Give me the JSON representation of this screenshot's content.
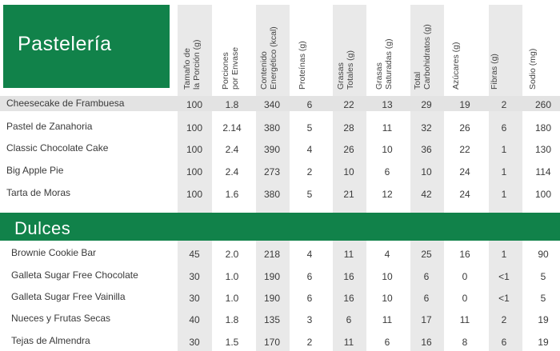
{
  "headers": [
    [
      "Tamaño de",
      "la Porción (g)"
    ],
    [
      "Porciones",
      "por Envase"
    ],
    [
      "Contenido",
      "Energético (kcal)"
    ],
    [
      "Proteínas (g)"
    ],
    [
      "Grasas",
      "Totales (g)"
    ],
    [
      "Grasas",
      "Saturadas (g)"
    ],
    [
      "Total",
      "Carbohidratos (g)"
    ],
    [
      "Azúcares (g)"
    ],
    [
      "Fibras (g)"
    ],
    [
      "Sodio (mg)"
    ]
  ],
  "sections": [
    {
      "title": "Pastelería",
      "rows": [
        {
          "name": "Cheesecake de Frambuesa",
          "values": [
            "100",
            "1.8",
            "340",
            "6",
            "22",
            "13",
            "29",
            "19",
            "2",
            "260"
          ]
        },
        {
          "name": "Pastel de Zanahoria",
          "values": [
            "100",
            "2.14",
            "380",
            "5",
            "28",
            "11",
            "32",
            "26",
            "6",
            "180"
          ]
        },
        {
          "name": "Classic Chocolate Cake",
          "values": [
            "100",
            "2.4",
            "390",
            "4",
            "26",
            "10",
            "36",
            "22",
            "1",
            "130"
          ]
        },
        {
          "name": "Big Apple Pie",
          "values": [
            "100",
            "2.4",
            "273",
            "2",
            "10",
            "6",
            "10",
            "24",
            "1",
            "114"
          ]
        },
        {
          "name": "Tarta de Moras",
          "values": [
            "100",
            "1.6",
            "380",
            "5",
            "21",
            "12",
            "42",
            "24",
            "1",
            "100"
          ]
        }
      ]
    },
    {
      "title": "Dulces",
      "rows": [
        {
          "name": "Brownie Cookie Bar",
          "values": [
            "45",
            "2.0",
            "218",
            "4",
            "11",
            "4",
            "25",
            "16",
            "1",
            "90"
          ]
        },
        {
          "name": "Galleta Sugar Free Chocolate",
          "values": [
            "30",
            "1.0",
            "190",
            "6",
            "16",
            "10",
            "6",
            "0",
            "<1",
            "5"
          ]
        },
        {
          "name": "Galleta Sugar Free Vainilla",
          "values": [
            "30",
            "1.0",
            "190",
            "6",
            "16",
            "10",
            "6",
            "0",
            "<1",
            "5"
          ]
        },
        {
          "name": "Nueces y Frutas Secas",
          "values": [
            "40",
            "1.8",
            "135",
            "3",
            "6",
            "11",
            "17",
            "11",
            "2",
            "19"
          ]
        },
        {
          "name": "Tejas de Almendra",
          "values": [
            "30",
            "1.5",
            "170",
            "2",
            "11",
            "6",
            "16",
            "8",
            "6",
            "19"
          ]
        }
      ]
    }
  ],
  "colors": {
    "green": "#11824a",
    "shade": "#e9e9e9",
    "highlight": "#e3e3e3"
  }
}
